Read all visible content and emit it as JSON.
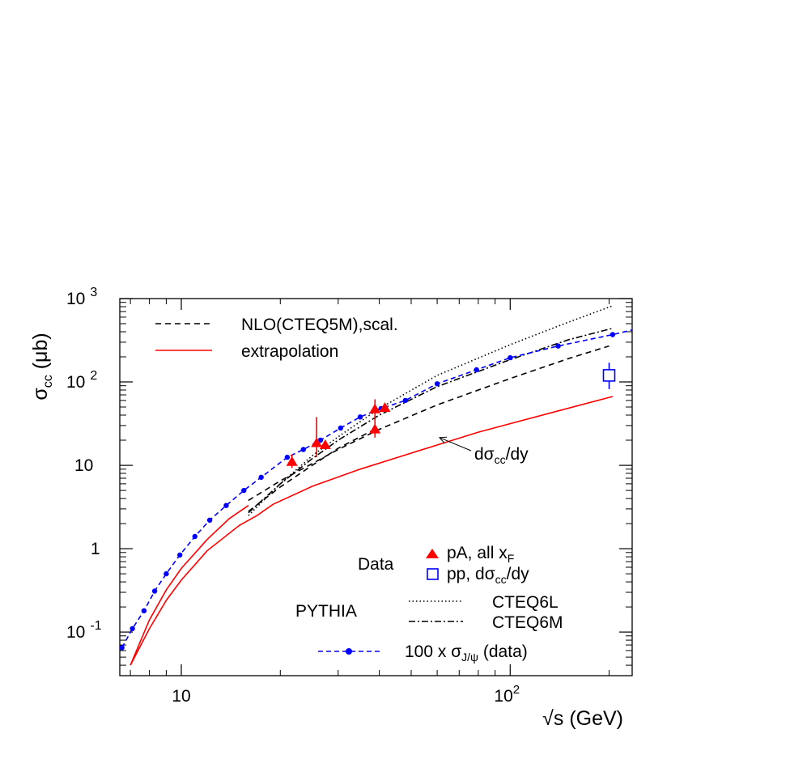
{
  "chart_data": {
    "type": "line",
    "x_scale": "log",
    "y_scale": "log",
    "xlim": [
      6.5,
      235
    ],
    "ylim": [
      0.03,
      1000
    ],
    "xlabel": "√s (GeV)",
    "ylabel_base": "σ",
    "ylabel_sub": "cc",
    "ylabel_unit": " (μb)",
    "x_ticks": [
      {
        "value": 10,
        "base": "10",
        "exp": ""
      },
      {
        "value": 100,
        "base": "10",
        "exp": "2"
      }
    ],
    "y_ticks": [
      {
        "value": 0.1,
        "base": "10",
        "exp": "-1"
      },
      {
        "value": 1,
        "base": "1",
        "exp": ""
      },
      {
        "value": 10,
        "base": "10",
        "exp": ""
      },
      {
        "value": 100,
        "base": "10",
        "exp": "2"
      },
      {
        "value": 1000,
        "base": "10",
        "exp": "3"
      }
    ],
    "series": [
      {
        "key": "nlo",
        "color": "#000000",
        "dash": "7,5",
        "width": 1.6,
        "x": [
          16,
          20,
          25,
          30,
          40,
          60,
          100,
          150,
          200
        ],
        "y": [
          3.8,
          6.5,
          10.5,
          15.5,
          27,
          53,
          110,
          190,
          270
        ]
      },
      {
        "key": "nlo_lower",
        "color": "#000000",
        "dash": "7,5",
        "width": 1.6,
        "x": [
          16,
          20,
          25,
          30,
          38
        ],
        "y": [
          2.8,
          5.5,
          10,
          16,
          26
        ]
      },
      {
        "key": "extrapolation",
        "color": "#ff0000",
        "dash": "",
        "width": 1.6,
        "x": [
          7,
          8,
          9,
          10,
          12,
          15,
          17,
          19,
          25,
          35,
          50,
          80,
          140,
          205
        ],
        "y": [
          0.04,
          0.11,
          0.24,
          0.42,
          0.95,
          1.9,
          2.5,
          3.4,
          5.6,
          9,
          14,
          25,
          45,
          67
        ]
      },
      {
        "key": "extrapolation_dy",
        "color": "#ff0000",
        "dash": "",
        "width": 1.6,
        "x": [
          7,
          8,
          9,
          10,
          12,
          14,
          16
        ],
        "y": [
          0.04,
          0.14,
          0.32,
          0.58,
          1.3,
          2.3,
          3.3
        ]
      },
      {
        "key": "pythia_cteq6l",
        "color": "#000000",
        "dash": "1.5,3",
        "width": 1.6,
        "x": [
          16,
          20,
          25,
          30,
          40,
          60,
          100,
          150,
          205
        ],
        "y": [
          2.5,
          6,
          13,
          22,
          48,
          120,
          280,
          520,
          820
        ]
      },
      {
        "key": "pythia_cteq6m",
        "color": "#000000",
        "dash": "8,3,2,3",
        "width": 1.6,
        "x": [
          16,
          20,
          25,
          30,
          40,
          60,
          100,
          150,
          205
        ],
        "y": [
          2.7,
          6,
          12,
          20,
          40,
          88,
          185,
          320,
          440
        ]
      },
      {
        "key": "jpsi",
        "color": "#0000ff",
        "dash": "6,4",
        "width": 1.6,
        "markers": true,
        "x": [
          6.6,
          7.1,
          7.7,
          8.3,
          9.0,
          9.9,
          11.0,
          12.2,
          13.7,
          15.5,
          17.5,
          21.0,
          23.5,
          26.5,
          30.5,
          35.0,
          40.5,
          48.0,
          60.0,
          79.0,
          100,
          140,
          205,
          235
        ],
        "y": [
          0.065,
          0.11,
          0.18,
          0.31,
          0.5,
          0.84,
          1.4,
          2.2,
          3.3,
          5.0,
          7.2,
          12.5,
          15.5,
          20,
          28,
          38,
          48,
          60,
          95,
          140,
          195,
          270,
          370,
          420
        ]
      }
    ],
    "data_pA": [
      {
        "x": 21.7,
        "y": 11,
        "err_low": 9.3,
        "err_high": 13.5
      },
      {
        "x": 25.8,
        "y": 18.5,
        "err_low": 12.5,
        "err_high": 38
      },
      {
        "x": 27.4,
        "y": 17.5,
        "err_low": 16,
        "err_high": 19.5
      },
      {
        "x": 38.8,
        "y": 27,
        "err_low": 21.5,
        "err_high": 34
      },
      {
        "x": 38.8,
        "y": 47,
        "err_low": 34,
        "err_high": 62
      },
      {
        "x": 41.6,
        "y": 49,
        "err_low": 43.5,
        "err_high": 55
      }
    ],
    "data_pp": [
      {
        "x": 200,
        "y": 120,
        "err_low": 82,
        "err_high": 170
      }
    ],
    "legend_top": [
      {
        "label": "NLO(CTEQ5M),scal.",
        "series": "nlo"
      },
      {
        "label": "extrapolation",
        "series": "extrapolation"
      }
    ],
    "annotation": {
      "prefix": "dσ",
      "sub": "cc",
      "suffix": "/dy",
      "arrow_to_x": 61,
      "arrow_to_y": 21.5
    },
    "legend_data_group": "Data",
    "legend_pA_text": "pA, all x",
    "legend_pA_sub": "F",
    "legend_pp_prefix": "pp, dσ",
    "legend_pp_sub": "cc",
    "legend_pp_suffix": "/dy",
    "legend_pythia_group": "PYTHIA",
    "legend_pythia_items": [
      {
        "label": "CTEQ6L",
        "series": "pythia_cteq6l"
      },
      {
        "label": "CTEQ6M",
        "series": "pythia_cteq6m"
      }
    ],
    "legend_jpsi_prefix": "100 x σ",
    "legend_jpsi_sub": "J/ψ",
    "legend_jpsi_suffix": " (data)"
  }
}
